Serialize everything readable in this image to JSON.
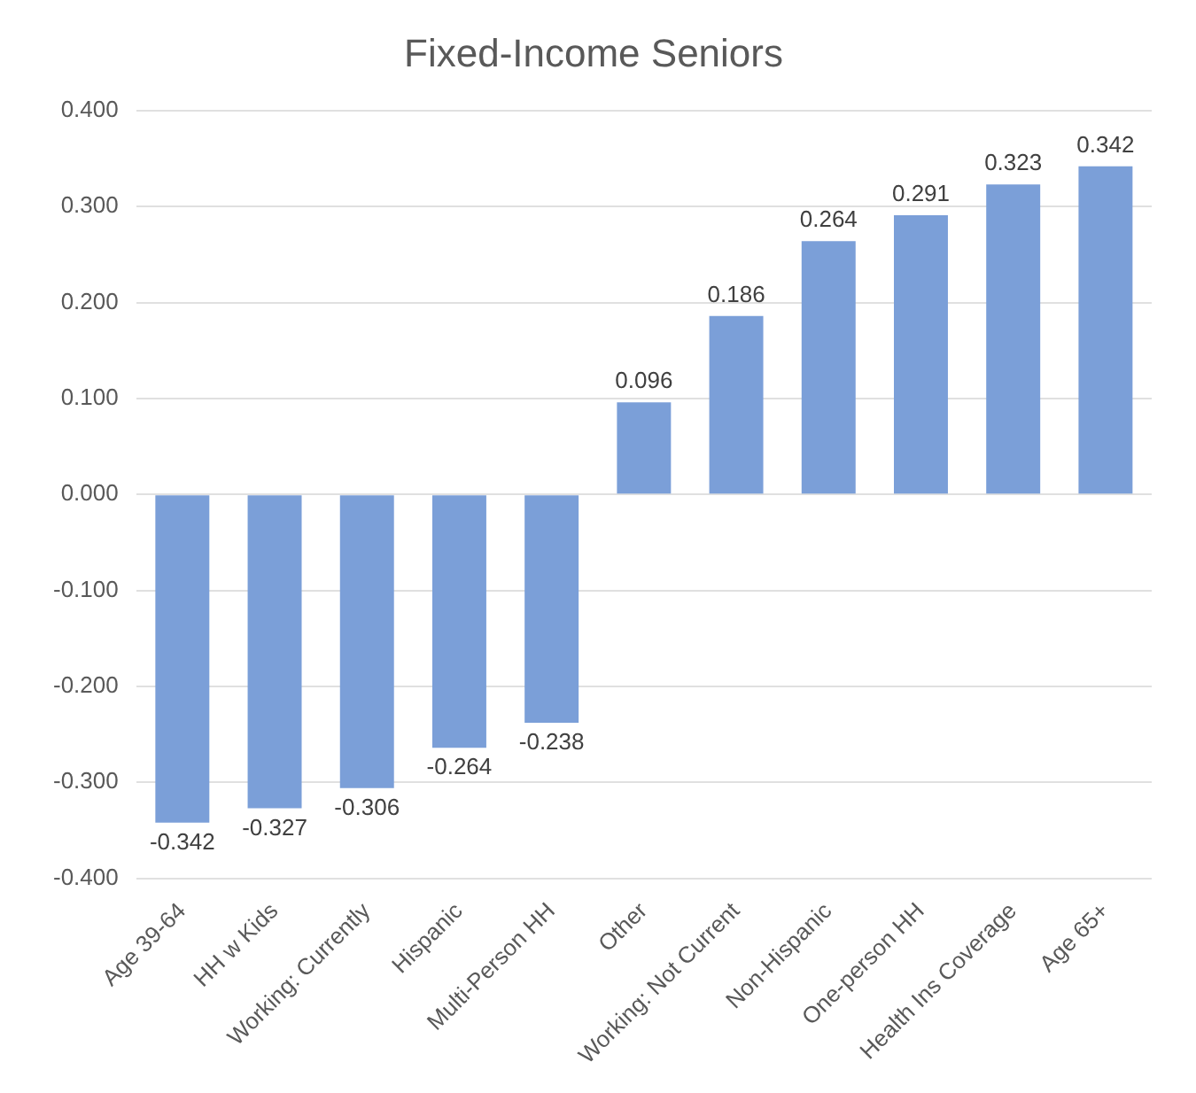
{
  "chart_data": {
    "type": "bar",
    "title": "Fixed-Income Seniors",
    "categories": [
      "Age 39-64",
      "HH w Kids",
      "Working: Currently",
      "Hispanic",
      "Multi-Person HH",
      "Other",
      "Working: Not Current",
      "Non-Hispanic",
      "One-person HH",
      "Health Ins Coverage",
      "Age 65+"
    ],
    "values": [
      -0.342,
      -0.327,
      -0.306,
      -0.264,
      -0.238,
      0.096,
      0.186,
      0.264,
      0.291,
      0.323,
      0.342
    ],
    "color": "#7b9fd8",
    "ylim": [
      -0.4,
      0.4
    ],
    "yticks": [
      {
        "value": -0.4,
        "label": "-0.400"
      },
      {
        "value": -0.3,
        "label": "-0.300"
      },
      {
        "value": -0.2,
        "label": "-0.200"
      },
      {
        "value": -0.1,
        "label": "-0.100"
      },
      {
        "value": 0,
        "label": "0.000"
      },
      {
        "value": 0.1,
        "label": "0.100"
      },
      {
        "value": 0.2,
        "label": "0.200"
      },
      {
        "value": 0.3,
        "label": "0.300"
      },
      {
        "value": 0.4,
        "label": "0.400"
      }
    ],
    "grid": "y",
    "data_labels": true,
    "legend": false
  }
}
